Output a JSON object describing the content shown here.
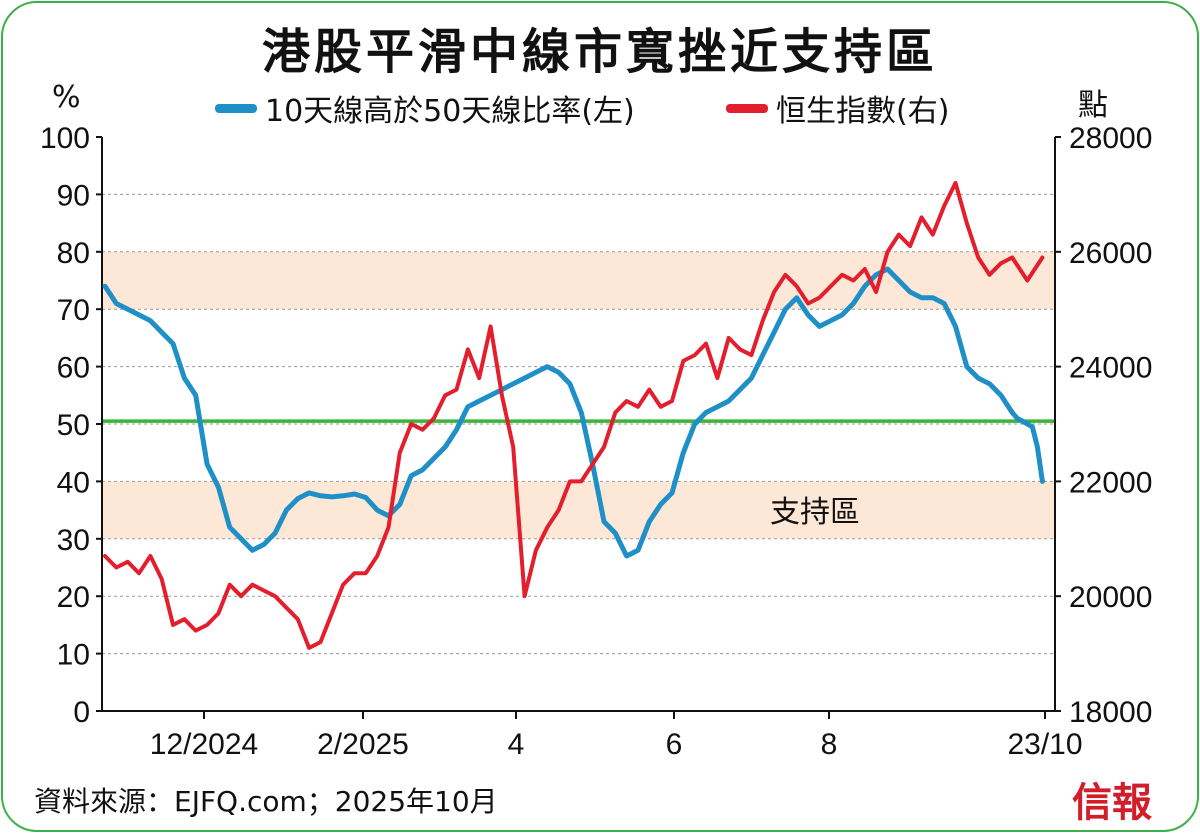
{
  "title": "港股平滑中線市寬挫近支持區",
  "legend": [
    {
      "label": "10天線高於50天線比率(左)",
      "color": "#1f8fc8"
    },
    {
      "label": "恒生指數(右)",
      "color": "#e31e2d"
    }
  ],
  "units": {
    "left": "%",
    "right": "點"
  },
  "source": "資料來源：EJFQ.com；2025年10月",
  "brand": "信報",
  "chart_data": {
    "type": "line",
    "title": "港股平滑中線市寬挫近支持區",
    "x_tick_labels": [
      "12/2024",
      "2/2025",
      "4",
      "6",
      "8",
      "23/10"
    ],
    "y_left": {
      "label": "%",
      "range": [
        0,
        100
      ],
      "ticks": [
        "0",
        "10",
        "20",
        "30",
        "40",
        "50",
        "60",
        "70",
        "80",
        "90",
        "100"
      ]
    },
    "y_right": {
      "label": "點",
      "range": [
        18000,
        28000
      ],
      "ticks": [
        "18000",
        "20000",
        "22000",
        "24000",
        "26000",
        "28000"
      ]
    },
    "grid": true,
    "reference_line": {
      "axis": "left",
      "value": 50.5,
      "color": "#3db33a"
    },
    "bands": [
      {
        "axis": "left",
        "from": 70,
        "to": 80,
        "color": "#fde8d8"
      },
      {
        "axis": "left",
        "from": 30,
        "to": 40,
        "color": "#fde8d8",
        "label": "支持區"
      }
    ],
    "series": [
      {
        "name": "10天線高於50天線比率(左)",
        "axis": "left",
        "color": "#1f8fc8",
        "x": [
          0,
          3,
          6,
          9,
          12,
          15,
          18,
          21,
          24,
          27,
          30,
          33,
          36,
          39,
          42,
          45,
          48,
          51,
          54,
          57,
          60,
          63,
          66,
          69,
          72,
          75,
          78,
          81,
          84,
          87,
          90,
          93,
          96,
          99,
          102,
          105,
          108,
          111,
          114,
          117,
          120,
          123,
          126,
          129,
          132,
          135,
          138,
          141,
          144,
          147,
          150,
          153,
          156,
          159,
          162,
          165,
          168,
          171,
          174,
          177,
          180,
          183,
          186,
          189,
          192,
          195,
          198,
          201,
          204,
          207,
          210,
          213,
          216,
          219,
          222,
          225,
          228,
          231,
          234,
          237,
          240
        ],
        "values": [
          74,
          71,
          70,
          69,
          68,
          66,
          64,
          58,
          55,
          43,
          39,
          32,
          30,
          28,
          29,
          31,
          35,
          37,
          38,
          37.5,
          37.3,
          37.5,
          37.8,
          37.2,
          35,
          34,
          36,
          41,
          42,
          44,
          46,
          49,
          53,
          54,
          55,
          56,
          57,
          58,
          59,
          60,
          59,
          57,
          52,
          43,
          33,
          31,
          27,
          28,
          33,
          36,
          38,
          45,
          50,
          52,
          53,
          54,
          56,
          58,
          62,
          66,
          70,
          72,
          69,
          67,
          68,
          69,
          71,
          74,
          76,
          77,
          75,
          73,
          72,
          72,
          71,
          67,
          60,
          58,
          57,
          55,
          52
        ],
        "last_values": [
          51,
          50.5,
          50,
          49.5,
          46,
          40
        ]
      },
      {
        "name": "恒生指數(右)",
        "axis": "right",
        "color": "#e31e2d",
        "x": [
          0,
          3,
          6,
          9,
          12,
          15,
          18,
          21,
          24,
          27,
          30,
          33,
          36,
          39,
          42,
          45,
          48,
          51,
          54,
          57,
          60,
          63,
          66,
          69,
          72,
          75,
          78,
          81,
          84,
          87,
          90,
          93,
          96,
          99,
          102,
          105,
          108,
          111,
          114,
          117,
          120,
          123,
          126,
          129,
          132,
          135,
          138,
          141,
          144,
          147,
          150,
          153,
          156,
          159,
          162,
          165,
          168,
          171,
          174,
          177,
          180,
          183,
          186,
          189,
          192,
          195,
          198,
          201,
          204,
          207,
          210,
          213,
          216,
          219,
          222,
          225,
          228,
          231,
          234,
          237,
          240
        ],
        "values": [
          20700,
          20500,
          20600,
          20400,
          20700,
          20300,
          19500,
          19600,
          19400,
          19500,
          19700,
          20200,
          20000,
          20200,
          20100,
          20000,
          19800,
          19600,
          19100,
          19200,
          19700,
          20200,
          20400,
          20400,
          20700,
          21200,
          22500,
          23000,
          22900,
          23100,
          23500,
          23600,
          24300,
          23800,
          24700,
          23500,
          22600,
          20000,
          20800,
          21200,
          21500,
          22000,
          22000,
          22300,
          22600,
          23200,
          23400,
          23300,
          23600,
          23300,
          23400,
          24100,
          24200,
          24400,
          23800,
          24500,
          24300,
          24200,
          24800,
          25300,
          25600,
          25400,
          25100,
          25200,
          25400,
          25600,
          25500,
          25700,
          25300,
          26000,
          26300,
          26100,
          26600,
          26300,
          26800,
          27200,
          26500,
          25900,
          25600,
          25800,
          25900
        ],
        "last_values": [
          25500,
          25900
        ]
      }
    ]
  }
}
